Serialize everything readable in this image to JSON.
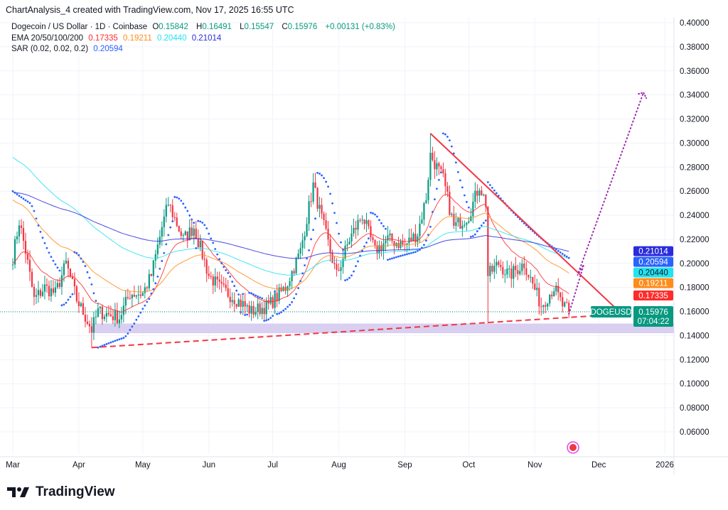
{
  "credit": "ChartAnalysis_4 created with TradingView.com, Nov 17, 2025 16:55 UTC",
  "legend": {
    "symbol": "Dogecoin / US Dollar · 1D · Coinbase",
    "o_label": "O",
    "o": "0.15842",
    "h_label": "H",
    "h": "0.16491",
    "l_label": "L",
    "l": "0.15547",
    "c_label": "C",
    "c": "0.15976",
    "change": "+0.00131 (+0.83%)",
    "ema_label": "EMA 20/50/100/200",
    "ema20": "0.17335",
    "ema50": "0.19211",
    "ema100": "0.20440",
    "ema200": "0.21014",
    "sar_label": "SAR (0.02, 0.02, 0.2)",
    "sar": "0.20594"
  },
  "colors": {
    "up": "#089981",
    "down": "#f23645",
    "ema20": "#ff2b2b",
    "ema50": "#ff8c1a",
    "ema100": "#22e3f0",
    "ema200": "#2b2bdc",
    "sar": "#2962ff",
    "trend": "#f23645",
    "projection": "#9c27b0",
    "band": "#d9cff0"
  },
  "logo": "TradingView",
  "chart_data": {
    "type": "candlestick",
    "symbol_tag": "DOGEUSD",
    "last_price": "0.15976",
    "countdown": "07:04:22",
    "ylim": [
      0.05,
      0.41
    ],
    "y_ticks": [
      "0.40000",
      "0.38000",
      "0.36000",
      "0.34000",
      "0.32000",
      "0.30000",
      "0.28000",
      "0.26000",
      "0.24000",
      "0.22000",
      "0.20000",
      "0.18000",
      "0.16000",
      "0.14000",
      "0.12000",
      "0.10000",
      "0.08000",
      "0.06000"
    ],
    "x_ticks": [
      {
        "label": "Mar",
        "day": 0
      },
      {
        "label": "Apr",
        "day": 31
      },
      {
        "label": "May",
        "day": 61
      },
      {
        "label": "Jun",
        "day": 92
      },
      {
        "label": "Jul",
        "day": 122
      },
      {
        "label": "Aug",
        "day": 153
      },
      {
        "label": "Sep",
        "day": 184
      },
      {
        "label": "Oct",
        "day": 214
      },
      {
        "label": "Nov",
        "day": 245
      },
      {
        "label": "Dec",
        "day": 275
      },
      {
        "label": "2026",
        "day": 306
      }
    ],
    "close_anchors": [
      [
        0,
        0.205
      ],
      [
        3,
        0.235
      ],
      [
        6,
        0.21
      ],
      [
        10,
        0.17
      ],
      [
        15,
        0.18
      ],
      [
        20,
        0.175
      ],
      [
        25,
        0.2
      ],
      [
        30,
        0.17
      ],
      [
        37,
        0.145
      ],
      [
        40,
        0.16
      ],
      [
        50,
        0.155
      ],
      [
        55,
        0.175
      ],
      [
        61,
        0.175
      ],
      [
        65,
        0.19
      ],
      [
        70,
        0.23
      ],
      [
        73,
        0.25
      ],
      [
        80,
        0.22
      ],
      [
        85,
        0.23
      ],
      [
        92,
        0.19
      ],
      [
        97,
        0.18
      ],
      [
        105,
        0.17
      ],
      [
        112,
        0.16
      ],
      [
        120,
        0.165
      ],
      [
        128,
        0.18
      ],
      [
        135,
        0.21
      ],
      [
        141,
        0.265
      ],
      [
        146,
        0.23
      ],
      [
        152,
        0.19
      ],
      [
        158,
        0.22
      ],
      [
        164,
        0.24
      ],
      [
        170,
        0.21
      ],
      [
        176,
        0.22
      ],
      [
        184,
        0.215
      ],
      [
        190,
        0.225
      ],
      [
        194,
        0.255
      ],
      [
        196,
        0.29
      ],
      [
        202,
        0.27
      ],
      [
        207,
        0.23
      ],
      [
        214,
        0.24
      ],
      [
        219,
        0.265
      ],
      [
        222,
        0.25
      ],
      [
        223,
        0.19
      ],
      [
        228,
        0.2
      ],
      [
        233,
        0.19
      ],
      [
        240,
        0.2
      ],
      [
        248,
        0.165
      ],
      [
        254,
        0.18
      ],
      [
        258,
        0.165
      ],
      [
        261,
        0.16
      ]
    ],
    "price_labels": [
      {
        "name": "ema200",
        "value": "0.21014"
      },
      {
        "name": "sar",
        "value": "0.20594"
      },
      {
        "name": "ema100",
        "value": "0.20440"
      },
      {
        "name": "ema50",
        "value": "0.19211"
      },
      {
        "name": "ema20",
        "value": "0.17335"
      }
    ],
    "annotations": {
      "descending_trendline": [
        [
          196,
          0.308
        ],
        [
          287,
          0.156
        ]
      ],
      "ascending_support": [
        [
          37,
          0.13
        ],
        [
          287,
          0.158
        ]
      ],
      "support_zone": [
        0.142,
        0.15
      ],
      "projection_path": [
        [
          261,
          0.158
        ],
        [
          268,
          0.199
        ],
        [
          265,
          0.19
        ],
        [
          296,
          0.342
        ]
      ]
    }
  }
}
